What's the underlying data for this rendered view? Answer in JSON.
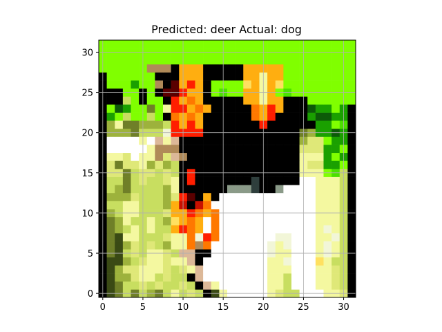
{
  "chart_data": {
    "type": "heatmap",
    "title": "Predicted: deer Actual: dog",
    "xlabel": "",
    "ylabel": "",
    "xlim": [
      -0.5,
      31.5
    ],
    "ylim": [
      31.5,
      -0.5
    ],
    "grid": true,
    "x_ticks": [
      0,
      5,
      10,
      15,
      20,
      25,
      30
    ],
    "y_ticks": [
      0,
      5,
      10,
      15,
      20,
      25,
      30
    ],
    "x_tick_labels": [
      "0",
      "5",
      "10",
      "15",
      "20",
      "25",
      "30"
    ],
    "y_tick_labels": [
      "0",
      "5",
      "10",
      "15",
      "20",
      "25",
      "30"
    ],
    "image_size": [
      32,
      32
    ],
    "palette": {
      "K": "#000000",
      "W": "#ffffff",
      "w": "#f2f6d8",
      "Y": "#f4f8a0",
      "y": "#dfe878",
      "G": "#c8de60",
      "g": "#9db23c",
      "o": "#6f7f28",
      "d": "#3a4a14",
      "L": "#80ff00",
      "l": "#4ce000",
      "e": "#1aa000",
      "v": "#0c5a08",
      "R": "#ff1e00",
      "r": "#c81000",
      "O": "#ff7800",
      "F": "#ffae10",
      "f": "#ffe060",
      "m": "#5a0000",
      "S": "#8a9a88",
      "B": "#2e3e3c",
      "P": "#dcb898",
      "T": "#b08a58"
    },
    "pixels": [
      "KdoGoGgoGYGyGKdYWWWWWYyGGWWWYYyK",
      "KdoGGyGyGGyGKPYWWWWWWYYGWWWYYyGK",
      "KdggyYYGyGGKPWWWWWWWWYYGWWWYYyGK",
      "KdgyyYYYyGyYPWWWWWWWWYYYWWWYYyGK",
      "KddgGyYYyYYPKWWWWWWWWYYwWWWfYGGK",
      "KodGyGYYyGPPKKWWWWWWWwYYWWWYwYGK",
      "KodgyGyGgYYOTOWWWWWWWwYwWWWYwYGK",
      "KodYYGGGyYYOwROWWWWWWWwwWWWYYwGK",
      "KogGYGYGGFROFWOWWWWWWWWWWWWYwYGK",
      "KogYGGYGgfFOFWOWWWWWWWWWWWWYYYGK",
      "KgGYYGGGyFFROFOWWWWWWWWWWWWYYYGK",
      "KGGYYGGGgFrKrOWWWWWWWWWWWWWYYYGK",
      "KgggyGGGgyRmKFKWWWWWWWWWWWWYYYGK",
      "KGgoGGGGgYKKKKKKSSSBKKSWWWWYYYGK",
      "KGGoGyGGyYKRKKKKKKKBKKKKKWWYYYGK",
      "KyyoGyyGyGKRKKKKKKKKKKKKKYYYLlGK",
      "KyoyyYgygGKKKKKKKKKKKKKKKYyyeeLK",
      "KYYyWYYTyPTKKKKKKKKKKKKKKYYYeLeK",
      "KWWWWWYTTTKKKKKKKKKKKKKKKyyyeeLK",
      "KWWWWYWPYPKKKKKKKKKKKKKKKgyyLeeK",
      "KgggoGGGwRRRRKKKKKKKKKKKKogeeveK",
      "KgYoogggGRFRFKKKKKKKRKKKKKKeeLlK",
      "KeLGLLGLKOFOFKKKKKKOFRKKKKevveeK",
      "KLveLLoLYRRFOFKKKKKOFRFKKKveeLeK",
      "KKKGLKLLKRFOFKKKKKFFYFFKKKLLLLLL",
      "KKKLLKLKmmRFFKLlLLFFYFLlLLLLLLLL",
      "KLLLeLLTKmFRFKLLLLfFYFfLLLLLLLLL",
      "KLLLLLLKKKFFFKKKKKFFYFFLLLLLLLLL",
      "LLLLLLTTTKFFFKKKKKFFFFFLLLLLLLLL",
      "LLLLLLLLLLLLLLLLLLLLLLLLLLLLLLLL",
      "LLLLLLLLLLLLLLLLLLLLLLLLLLLLLLLL",
      "LLLLLLLLLLLLLLLLLLLLLLLLLLLLLLLL"
    ]
  }
}
